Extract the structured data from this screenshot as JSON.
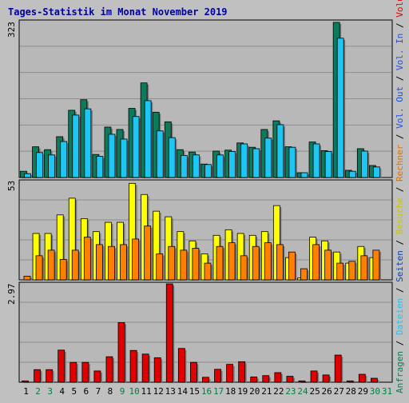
{
  "colors": {
    "page_bg": "#c0c0c0",
    "panel_bg": "#b8b8b8",
    "title": "#0000a0",
    "grid": "#8c8c8c",
    "axis_label": "#000000",
    "weekend_day": "#008040",
    "weekday_day": "#000000"
  },
  "chart_data": [
    {
      "type": "bar",
      "title": "Tages-Statistik im Monat November 2019",
      "ymax_label": "323",
      "ylim": [
        0,
        323
      ],
      "categories": [
        "1",
        "2",
        "3",
        "4",
        "5",
        "6",
        "7",
        "8",
        "9",
        "10",
        "11",
        "12",
        "13",
        "14",
        "15",
        "16",
        "17",
        "18",
        "19",
        "20",
        "21",
        "22",
        "23",
        "24",
        "25",
        "26",
        "27",
        "28",
        "29",
        "30",
        "31"
      ],
      "weekend_days": [
        "2",
        "3",
        "9",
        "10",
        "16",
        "17",
        "23",
        "24",
        "30",
        "31"
      ],
      "series": [
        {
          "name": "Anfragen",
          "color": "#0d7a5c",
          "values": [
            13,
            64,
            58,
            85,
            140,
            162,
            48,
            105,
            100,
            144,
            197,
            136,
            116,
            58,
            53,
            28,
            55,
            57,
            72,
            63,
            100,
            118,
            64,
            10,
            74,
            56,
            323,
            15,
            60,
            25,
            0
          ]
        },
        {
          "name": "Dateien",
          "color": "#1ec6f4",
          "values": [
            8,
            52,
            47,
            75,
            130,
            143,
            44,
            90,
            80,
            127,
            160,
            97,
            83,
            46,
            47,
            27,
            47,
            54,
            70,
            60,
            82,
            110,
            63,
            10,
            70,
            54,
            290,
            13,
            55,
            22,
            0
          ]
        },
        {
          "name": "Seiten",
          "color": "#1040a0",
          "values": [
            0,
            0,
            0,
            0,
            0,
            0,
            0,
            0,
            0,
            0,
            0,
            0,
            0,
            0,
            0,
            0,
            0,
            0,
            0,
            0,
            0,
            0,
            0,
            0,
            0,
            0,
            0,
            0,
            0,
            0,
            0
          ]
        }
      ]
    },
    {
      "type": "bar",
      "ymax_label": "53",
      "ylim": [
        0,
        53
      ],
      "series": [
        {
          "name": "Besuche",
          "color": "#ffff00",
          "values": [
            0,
            25,
            25,
            35,
            44,
            33,
            26,
            31,
            31,
            52,
            46,
            37,
            34,
            26,
            21,
            14,
            24,
            27,
            25,
            24,
            26,
            40,
            12,
            1,
            23,
            21,
            15,
            9,
            18,
            12,
            0
          ]
        },
        {
          "name": "Rechner",
          "color": "#ff8000",
          "values": [
            2,
            13,
            16,
            11,
            16,
            23,
            19,
            18,
            19,
            22,
            29,
            14,
            18,
            16,
            17,
            9,
            18,
            20,
            13,
            18,
            20,
            19,
            15,
            6,
            19,
            16,
            9,
            10,
            13,
            16,
            0
          ]
        }
      ]
    },
    {
      "type": "bar",
      "ymax_label": "2.97",
      "ylim": [
        0,
        2.97
      ],
      "series": [
        {
          "name": "Volumen",
          "color": "#e00000",
          "values": [
            0.04,
            0.38,
            0.38,
            0.97,
            0.6,
            0.6,
            0.34,
            0.77,
            1.8,
            0.96,
            0.85,
            0.74,
            2.97,
            1.02,
            0.6,
            0.15,
            0.39,
            0.54,
            0.62,
            0.16,
            0.2,
            0.29,
            0.18,
            0.04,
            0.34,
            0.22,
            0.82,
            0.04,
            0.24,
            0.12,
            0.0
          ]
        },
        {
          "name": "Vol. In",
          "color": "#2050e0",
          "values": [
            0,
            0,
            0,
            0,
            0,
            0,
            0,
            0,
            0,
            0,
            0,
            0,
            0,
            0,
            0,
            0,
            0,
            0,
            0,
            0,
            0,
            0,
            0,
            0,
            0,
            0,
            0,
            0,
            0,
            0,
            0
          ]
        },
        {
          "name": "Vol. Out",
          "color": "#2050e0",
          "values": [
            0,
            0,
            0,
            0,
            0,
            0,
            0,
            0,
            0,
            0,
            0,
            0,
            0,
            0,
            0,
            0,
            0,
            0,
            0,
            0,
            0,
            0,
            0,
            0,
            0,
            0,
            0,
            0,
            0,
            0,
            0
          ]
        }
      ]
    }
  ],
  "right_legend": [
    {
      "text": "Anfragen",
      "color": "#0d7a5c"
    },
    {
      "text": " / ",
      "color": "#000000"
    },
    {
      "text": "Dateien",
      "color": "#1ec6f4"
    },
    {
      "text": " / ",
      "color": "#000000"
    },
    {
      "text": "Seiten",
      "color": "#1040a0"
    },
    {
      "text": " / ",
      "color": "#000000"
    },
    {
      "text": "Besuche",
      "color": "#c8c800"
    },
    {
      "text": " / ",
      "color": "#000000"
    },
    {
      "text": "Rechner",
      "color": "#e07000"
    },
    {
      "text": " / ",
      "color": "#000000"
    },
    {
      "text": "Vol. Out",
      "color": "#2050e0"
    },
    {
      "text": " / ",
      "color": "#000000"
    },
    {
      "text": "Vol. In",
      "color": "#2050e0"
    },
    {
      "text": " / ",
      "color": "#000000"
    },
    {
      "text": "Volumen",
      "color": "#e00000"
    }
  ]
}
